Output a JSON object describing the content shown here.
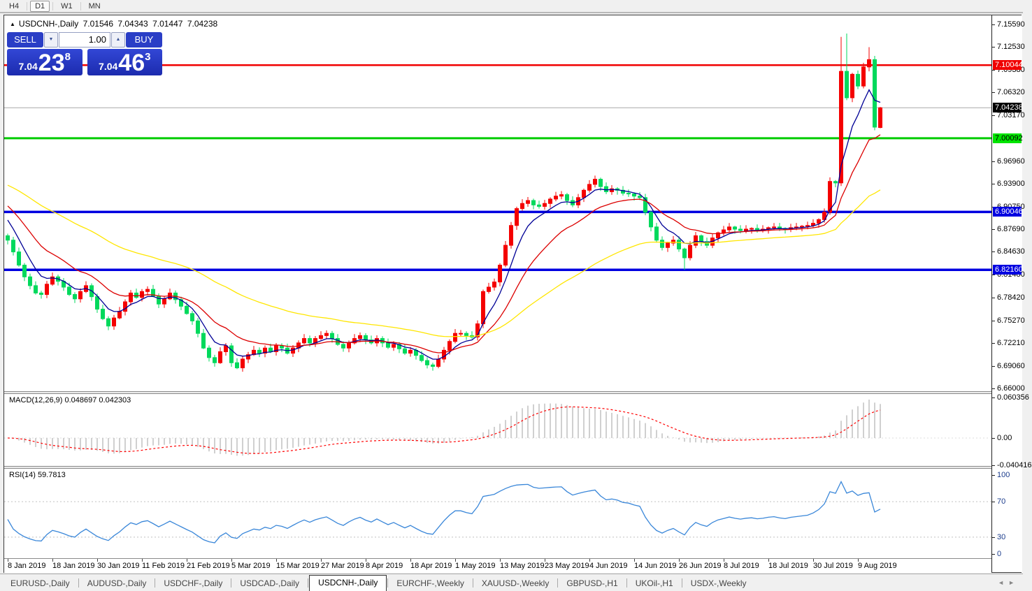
{
  "toolbar": {
    "timeframes": [
      "H4",
      "D1",
      "W1",
      "MN"
    ],
    "active_timeframe": "D1"
  },
  "chart_window": {
    "title_symbol": "USDCNH-,Daily",
    "ohlc": {
      "open": "7.01546",
      "high": "7.04343",
      "low": "7.01447",
      "close": "7.04238"
    }
  },
  "trade_panel": {
    "sell_label": "SELL",
    "buy_label": "BUY",
    "volume": "1.00",
    "sell_price": {
      "prefix": "7.04",
      "big": "23",
      "sup": "8"
    },
    "buy_price": {
      "prefix": "7.04",
      "big": "46",
      "sup": "3"
    }
  },
  "price_axis": {
    "ticks": [
      "7.15590",
      "7.12530",
      "7.09380",
      "7.06320",
      "7.03170",
      "6.96960",
      "6.93900",
      "6.90750",
      "6.87690",
      "6.84630",
      "6.81480",
      "6.78420",
      "6.75270",
      "6.72210",
      "6.69060",
      "6.66000"
    ]
  },
  "levels": [
    {
      "value": 7.10044,
      "label": "7.10044",
      "line": "#f00000",
      "badge_bg": "#f00000",
      "badge_fg": "#ffffff",
      "thickness": 2.5
    },
    {
      "value": 7.00092,
      "label": "7.00092",
      "line": "#00cc00",
      "badge_bg": "#00e400",
      "badge_fg": "#000000",
      "thickness": 3
    },
    {
      "value": 6.90046,
      "label": "6.90046",
      "line": "#0000e0",
      "badge_bg": "#0000e0",
      "badge_fg": "#ffffff",
      "thickness": 3.5
    },
    {
      "value": 6.8216,
      "label": "6.82160",
      "line": "#0000e0",
      "badge_bg": "#0000e0",
      "badge_fg": "#ffffff",
      "thickness": 3.5
    }
  ],
  "current_price": {
    "value": 7.04238,
    "label": "7.04238",
    "line": "#a8a8a8",
    "badge_bg": "#000000",
    "badge_fg": "#ffffff"
  },
  "indicators": {
    "macd": {
      "label": "MACD(12,26,9) 0.048697 0.042303",
      "axis": [
        {
          "label": "0.060356",
          "value": 0.060356
        },
        {
          "label": "0.00",
          "value": 0
        },
        {
          "label": "-0.040416",
          "value": -0.040416
        }
      ]
    },
    "rsi": {
      "label": "RSI(14) 59.7813",
      "axis": [
        {
          "label": "100",
          "value": 100
        },
        {
          "label": "70",
          "value": 70
        },
        {
          "label": "30",
          "value": 30
        },
        {
          "label": "0",
          "value": 0
        }
      ]
    }
  },
  "tabs": {
    "items": [
      "EURUSD-,Daily",
      "AUDUSD-,Daily",
      "USDCHF-,Daily",
      "USDCAD-,Daily",
      "USDCNH-,Daily",
      "EURCHF-,Weekly",
      "XAUUSD-,Weekly",
      "GBPUSD-,H1",
      "UKOil-,H1",
      "USDX-,Weekly"
    ],
    "active": "USDCNH-,Daily"
  },
  "colors": {
    "bull": "#f40000",
    "bear": "#00d95c",
    "ma_fast": "#000096",
    "ma_mid": "#dc0000",
    "ma_slow": "#ffe600",
    "macd_hist": "#c4c4c4",
    "macd_signal": "#ff0000",
    "macd_zero": "#dcdcdc",
    "rsi_line": "#3a87d9",
    "rsi_level": "#c0c0c0"
  },
  "chart_data": {
    "type": "candlestick",
    "symbol": "USDCNH-",
    "timeframe": "Daily",
    "price_range": [
      6.66,
      7.1559
    ],
    "x_tick_dates": [
      "8 Jan 2019",
      "18 Jan 2019",
      "30 Jan 2019",
      "11 Feb 2019",
      "21 Feb 2019",
      "5 Mar 2019",
      "15 Mar 2019",
      "27 Mar 2019",
      "8 Apr 2019",
      "18 Apr 2019",
      "1 May 2019",
      "13 May 2019",
      "23 May 2019",
      "4 Jun 2019",
      "14 Jun 2019",
      "26 Jun 2019",
      "8 Jul 2019",
      "18 Jul 2019",
      "30 Jul 2019",
      "9 Aug 2019"
    ],
    "closes": [
      6.862,
      6.846,
      6.828,
      6.812,
      6.8,
      6.79,
      6.788,
      6.802,
      6.812,
      6.806,
      6.798,
      6.788,
      6.782,
      6.792,
      6.8,
      6.785,
      6.768,
      6.755,
      6.745,
      6.756,
      6.765,
      6.778,
      6.79,
      6.784,
      6.792,
      6.795,
      6.786,
      6.775,
      6.782,
      6.79,
      6.781,
      6.772,
      6.762,
      6.752,
      6.735,
      6.715,
      6.702,
      6.695,
      6.71,
      6.718,
      6.695,
      6.688,
      6.7,
      6.706,
      6.712,
      6.708,
      6.715,
      6.71,
      6.718,
      6.715,
      6.708,
      6.715,
      6.722,
      6.728,
      6.722,
      6.728,
      6.732,
      6.735,
      6.728,
      6.72,
      6.715,
      6.722,
      6.728,
      6.732,
      6.726,
      6.722,
      6.728,
      6.722,
      6.716,
      6.72,
      6.714,
      6.708,
      6.712,
      6.705,
      6.698,
      6.692,
      6.69,
      6.7,
      6.712,
      6.724,
      6.735,
      6.735,
      6.732,
      6.73,
      6.748,
      6.792,
      6.798,
      6.805,
      6.828,
      6.855,
      6.882,
      6.905,
      6.912,
      6.916,
      6.91,
      6.908,
      6.912,
      6.918,
      6.922,
      6.924,
      6.916,
      6.91,
      6.92,
      6.93,
      6.938,
      6.945,
      6.935,
      6.928,
      6.932,
      6.93,
      6.926,
      6.925,
      6.922,
      6.92,
      6.9,
      6.88,
      6.862,
      6.852,
      6.858,
      6.862,
      6.85,
      6.838,
      6.855,
      6.868,
      6.86,
      6.855,
      6.865,
      6.872,
      6.876,
      6.88,
      6.877,
      6.875,
      6.877,
      6.878,
      6.876,
      6.877,
      6.879,
      6.88,
      6.878,
      6.877,
      6.879,
      6.88,
      6.881,
      6.882,
      6.885,
      6.89,
      6.9,
      6.942,
      6.94,
      7.092,
      7.056,
      7.088,
      7.072,
      7.098,
      7.108,
      7.016,
      7.04238
    ],
    "bar_overrides": {
      "121": {
        "l": 6.8216
      },
      "149": {
        "h": 7.139
      },
      "150": {
        "h": 7.1435
      },
      "154": {
        "h": 7.125
      },
      "156": {
        "o": 7.01546,
        "h": 7.04343,
        "l": 7.01447,
        "c": 7.04238
      }
    },
    "moving_averages": [
      {
        "name": "fast-ma",
        "color_key": "ma_fast",
        "alpha": 0.28,
        "seed": 6.9
      },
      {
        "name": "mid-ma",
        "color_key": "ma_mid",
        "alpha": 0.12,
        "seed": 6.915
      },
      {
        "name": "slow-ma",
        "color_key": "ma_slow",
        "alpha": 0.04,
        "seed": 6.94
      }
    ],
    "macd": {
      "fast": 12,
      "slow": 26,
      "signal_period": 9,
      "last_main": 0.048697,
      "last_signal": 0.042303,
      "range": [
        -0.040416,
        0.060356
      ]
    },
    "rsi": {
      "period": 14,
      "last": 59.7813,
      "range": [
        0,
        100
      ],
      "levels": [
        30,
        70
      ]
    }
  }
}
